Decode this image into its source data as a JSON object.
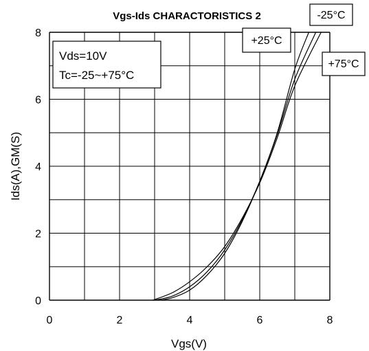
{
  "chart_data": {
    "type": "line",
    "title": "Vgs-Ids CHARACTORISTICS 2",
    "xlabel": "Vgs(V)",
    "ylabel": "Ids(A),GM(S)",
    "xlim": [
      0,
      8
    ],
    "ylim": [
      0,
      8
    ],
    "xticks": [
      "0",
      "2",
      "4",
      "6",
      "8"
    ],
    "yticks": [
      "0",
      "2",
      "4",
      "6",
      "8"
    ],
    "grid": true,
    "conditions": [
      "Vds=10V",
      "Tc=-25~+75°C"
    ],
    "series": [
      {
        "name": "-25°C",
        "x": [
          3.15,
          3.5,
          4.0,
          4.5,
          5.0,
          5.5,
          6.0,
          6.5,
          7.0,
          7.4
        ],
        "y": [
          0,
          0.07,
          0.3,
          0.75,
          1.4,
          2.35,
          3.55,
          5.0,
          6.9,
          8.0
        ]
      },
      {
        "name": "+25°C",
        "x": [
          3.0,
          3.5,
          4.0,
          4.5,
          5.0,
          5.5,
          6.0,
          6.5,
          7.0,
          7.6
        ],
        "y": [
          0,
          0.12,
          0.4,
          0.85,
          1.5,
          2.4,
          3.55,
          4.95,
          6.6,
          8.0
        ]
      },
      {
        "name": "+75°C",
        "x": [
          2.95,
          3.5,
          4.0,
          4.5,
          5.0,
          5.5,
          6.0,
          6.5,
          7.0,
          7.75
        ],
        "y": [
          0,
          0.22,
          0.55,
          1.0,
          1.6,
          2.45,
          3.5,
          4.85,
          6.4,
          8.0
        ]
      }
    ]
  }
}
